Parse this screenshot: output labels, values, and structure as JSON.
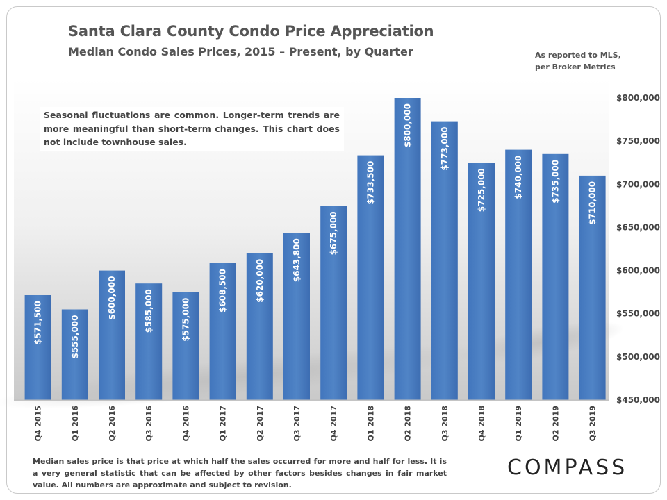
{
  "header": {
    "title": "Santa Clara County Condo Price Appreciation",
    "subtitle": "Median Condo Sales Prices, 2015 – Present, by Quarter",
    "source_line1": "As reported to MLS,",
    "source_line2": "per Broker Metrics"
  },
  "note": "Seasonal fluctuations are common. Longer-term trends are more meaningful than short-term changes. This chart does not include townhouse sales.",
  "footnote": "Median sales price is that price at which half the sales occurred for more and half for less. It is a very general statistic that can be affected by other factors besides changes in fair market value. All numbers are approximate and subject to revision.",
  "logo": "COMPASS",
  "colors": {
    "bar": "#4a7cc0",
    "bar_dark": "#3f6fb4",
    "text": "#444444"
  },
  "chart_data": {
    "type": "bar",
    "title": "Santa Clara County Condo Price Appreciation",
    "subtitle": "Median Condo Sales Prices, 2015 – Present, by Quarter",
    "xlabel": "",
    "ylabel": "",
    "categories": [
      "Q4 2015",
      "Q1 2016",
      "Q2 2016",
      "Q3 2016",
      "Q4 2016",
      "Q1 2017",
      "Q2 2017",
      "Q3 2017",
      "Q4 2017",
      "Q1 2018",
      "Q2 2018",
      "Q3 2018",
      "Q4 2018",
      "Q1 2019",
      "Q2 2019",
      "Q3 2019"
    ],
    "values": [
      571500,
      555000,
      600000,
      585000,
      575000,
      608500,
      620000,
      643800,
      675000,
      733500,
      800000,
      773000,
      725000,
      740000,
      735000,
      710000
    ],
    "data_labels": [
      "$571,500",
      "$555,000",
      "$600,000",
      "$585,000",
      "$575,000",
      "$608,500",
      "$620,000",
      "$643,800",
      "$675,000",
      "$733,500",
      "$800,000",
      "$773,000",
      "$725,000",
      "$740,000",
      "$735,000",
      "$710,000"
    ],
    "ylim": [
      450000,
      800000
    ],
    "yticks": [
      450000,
      500000,
      550000,
      600000,
      650000,
      700000,
      750000,
      800000
    ],
    "ytick_labels": [
      "$450,000",
      "$500,000",
      "$550,000",
      "$600,000",
      "$650,000",
      "$700,000",
      "$750,000",
      "$800,000"
    ],
    "y_axis_side": "right",
    "grid": false,
    "legend": "none"
  }
}
